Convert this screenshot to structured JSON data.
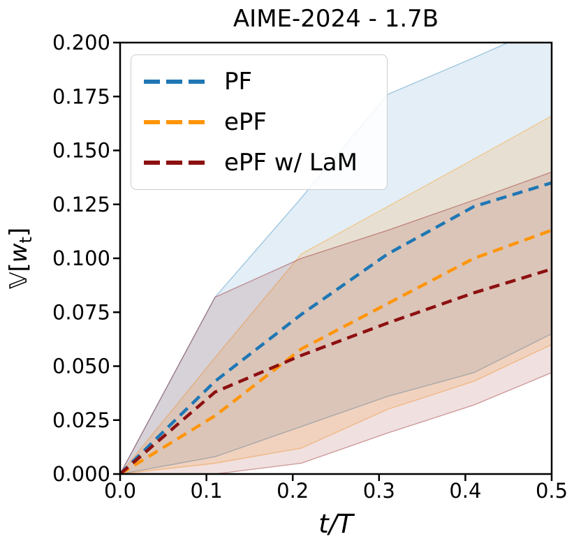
{
  "chart_data": {
    "type": "line",
    "title": "AIME-2024 - 1.7B",
    "xlabel": "t/T",
    "ylabel": "𝕍[wₜ]",
    "ylabel_parts": {
      "prefix": "𝕍[",
      "var": "w",
      "sub": "t",
      "suffix": "]"
    },
    "xlim": [
      0.0,
      0.5
    ],
    "ylim": [
      0.0,
      0.2
    ],
    "x_tick_labels": [
      "0.0",
      "0.1",
      "0.2",
      "0.3",
      "0.4",
      "0.5"
    ],
    "x_tick_values": [
      0.0,
      0.1,
      0.2,
      0.3,
      0.4,
      0.5
    ],
    "y_tick_labels": [
      "0.000",
      "0.025",
      "0.050",
      "0.075",
      "0.100",
      "0.125",
      "0.150",
      "0.175",
      "0.200"
    ],
    "y_tick_values": [
      0.0,
      0.025,
      0.05,
      0.075,
      0.1,
      0.125,
      0.15,
      0.175,
      0.2
    ],
    "grid": false,
    "line_style": "dashed",
    "legend_position": "upper left",
    "band_edge_opacity": 0.4,
    "x": [
      0.0,
      0.11,
      0.21,
      0.31,
      0.41,
      0.5
    ],
    "series": [
      {
        "name": "PF",
        "color": "#1f77b4",
        "fill_alpha": 0.125,
        "mean": [
          0.0,
          0.043,
          0.074,
          0.102,
          0.124,
          0.135
        ],
        "band_upper": [
          0.0,
          0.082,
          0.128,
          0.176,
          0.193,
          0.209
        ],
        "band_lower": [
          0.0,
          0.008,
          0.022,
          0.036,
          0.047,
          0.065
        ]
      },
      {
        "name": "ePF",
        "color": "#ff950a",
        "fill_alpha": 0.15,
        "mean": [
          0.0,
          0.027,
          0.058,
          0.079,
          0.1,
          0.113
        ],
        "band_upper": [
          0.0,
          0.054,
          0.102,
          0.124,
          0.146,
          0.166
        ],
        "band_lower": [
          0.0,
          0.005,
          0.012,
          0.03,
          0.043,
          0.06
        ]
      },
      {
        "name": "ePF w/ LaM",
        "color": "#8d1010",
        "fill_alpha": 0.13,
        "mean": [
          0.0,
          0.038,
          0.055,
          0.07,
          0.084,
          0.095
        ],
        "band_upper": [
          0.0,
          0.082,
          0.1,
          0.113,
          0.127,
          0.14
        ],
        "band_lower": [
          0.0,
          0.0,
          0.005,
          0.019,
          0.032,
          0.047
        ]
      }
    ]
  }
}
